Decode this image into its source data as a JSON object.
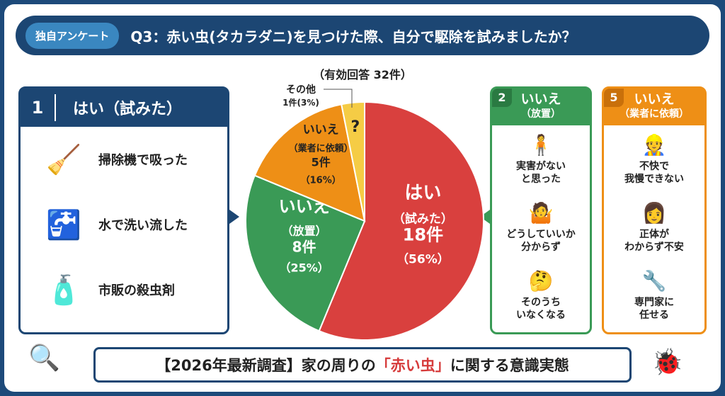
{
  "header": {
    "tag": "独自アンケート",
    "question": "Q3：赤い虫(タカラダニ)を見つけた際、自分で駆除を試みましたか？"
  },
  "subtitle": "（有効回答 32件）",
  "left_box": {
    "number": "1",
    "title": "はい（試みた）",
    "items": [
      {
        "icon": "vacuum-cleaner-icon",
        "label": "掃除機で吸った"
      },
      {
        "icon": "faucet-water-icon",
        "label": "水で洗い流した"
      },
      {
        "icon": "insecticide-spray-icon",
        "label": "市販の殺虫剤"
      }
    ]
  },
  "box2": {
    "number": "2",
    "title": "いいえ",
    "subtitle": "（放置）",
    "items": [
      {
        "icon": "person-icon",
        "label": "実害がない\nと思った"
      },
      {
        "icon": "confused-person-icon",
        "label": "どうしていいか\n分からず"
      },
      {
        "icon": "thinking-person-icon",
        "label": "そのうち\nいなくなる"
      }
    ]
  },
  "box5": {
    "number": "5",
    "title": "いいえ",
    "subtitle": "（業者に依頼）",
    "items": [
      {
        "icon": "worker-icon",
        "label": "不快で\n我慢できない"
      },
      {
        "icon": "worried-woman-icon",
        "label": "正体が\nわからず不安"
      },
      {
        "icon": "worker-wrench-icon",
        "label": "専門家に\n任せる"
      }
    ]
  },
  "footer": {
    "pre": "【2026年最新調査】家の周りの",
    "highlight": "「赤い虫」",
    "post": "に関する意識実態"
  },
  "chart_data": {
    "type": "pie",
    "total": 32,
    "slices": [
      {
        "label": "はい",
        "sub": "（試みた）",
        "count": 18,
        "count_label": "18件",
        "pct_label": "（56%）",
        "percent": 56,
        "color": "#d9403e"
      },
      {
        "label": "いいえ",
        "sub": "（放置）",
        "count": 8,
        "count_label": "8件",
        "pct_label": "（25%）",
        "percent": 25,
        "color": "#3a9a56"
      },
      {
        "label": "いいえ",
        "sub": "（業者に依頼）",
        "count": 5,
        "count_label": "5件",
        "pct_label": "（16%）",
        "percent": 16,
        "color": "#ee8f16"
      },
      {
        "label": "その他",
        "sub": "",
        "count": 1,
        "count_label": "1件(3%)",
        "pct_label": "",
        "percent": 3,
        "color": "#f5cc45",
        "mark": "?"
      }
    ]
  },
  "colors": {
    "navy": "#1c4673",
    "green": "#3a9a56",
    "orange": "#ee8f16",
    "red": "#d9403e"
  }
}
